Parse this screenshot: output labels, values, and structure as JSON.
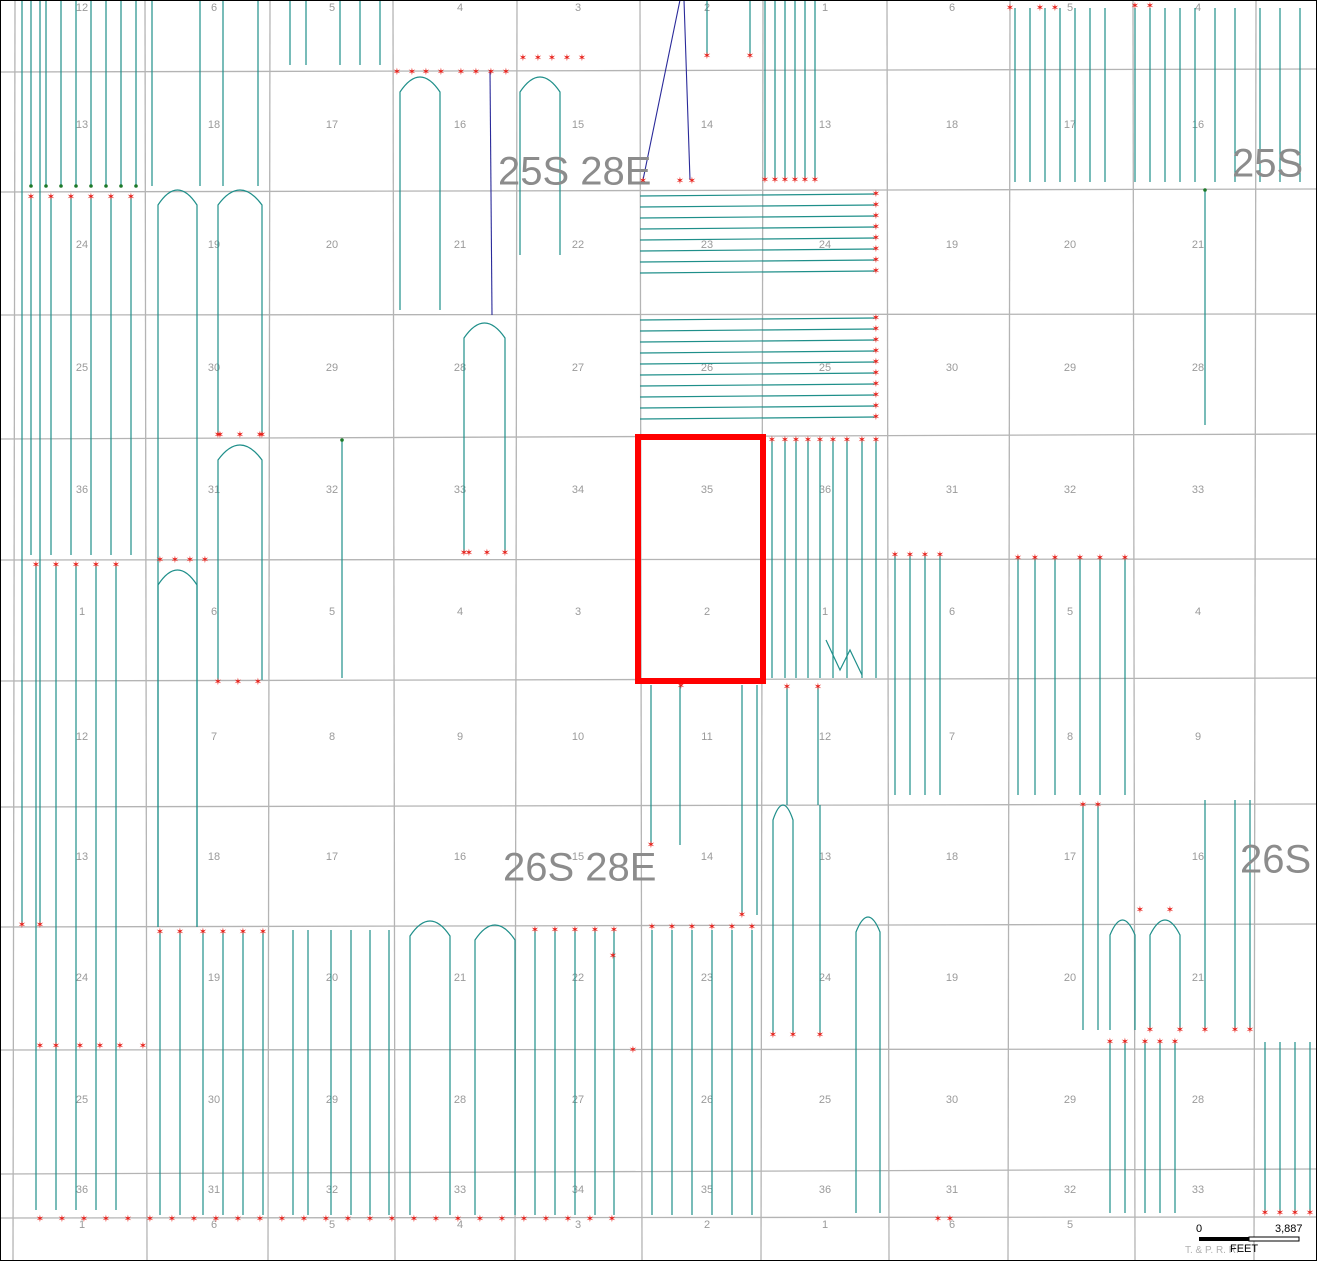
{
  "map": {
    "townships": [
      {
        "label": "25S 28E"
      },
      {
        "label": "25S"
      },
      {
        "label": "26S 28E"
      },
      {
        "label": "26S"
      }
    ],
    "section_numbers": {
      "band_a": [
        "12",
        "6",
        "5",
        "4",
        "3",
        "2",
        "1",
        "6",
        "5",
        "4"
      ],
      "band_b": [
        "13",
        "18",
        "17",
        "16",
        "15",
        "14",
        "13",
        "18",
        "17",
        "16"
      ],
      "band_c": [
        "24",
        "19",
        "20",
        "21",
        "22",
        "23",
        "24",
        "19",
        "20",
        "21"
      ],
      "band_d": [
        "25",
        "30",
        "29",
        "28",
        "27",
        "26",
        "25",
        "30",
        "29",
        "28"
      ],
      "band_e": [
        "36",
        "31",
        "32",
        "33",
        "34",
        "35",
        "36",
        "31",
        "32",
        "33"
      ],
      "band_f": [
        "1",
        "6",
        "5",
        "4",
        "3",
        "2",
        "1",
        "6",
        "5",
        "4"
      ],
      "band_g": [
        "12",
        "7",
        "8",
        "9",
        "10",
        "11",
        "12",
        "7",
        "8",
        "9"
      ],
      "band_h": [
        "13",
        "18",
        "17",
        "16",
        "15",
        "14",
        "13",
        "18",
        "17",
        "16"
      ],
      "band_i": [
        "24",
        "19",
        "20",
        "21",
        "22",
        "23",
        "24",
        "19",
        "20",
        "21"
      ],
      "band_j": [
        "25",
        "30",
        "29",
        "28",
        "27",
        "26",
        "25",
        "30",
        "29",
        "28"
      ],
      "band_k": [
        "36",
        "31",
        "32",
        "33",
        "34",
        "35",
        "36",
        "31",
        "32",
        "33"
      ],
      "band_l": [
        "1",
        "6",
        "5",
        "4",
        "3",
        "2",
        "1",
        "6",
        "5"
      ]
    },
    "highlight_color": "#ff0000",
    "well_color": "#1f8f8a",
    "surface_marker_color": "#e8221c",
    "well_symbol": "✶"
  },
  "scalebar": {
    "start_label": "0",
    "end_label": "3,887",
    "unit_label": "FEET",
    "overlay_text": "T. & P. R. R."
  }
}
